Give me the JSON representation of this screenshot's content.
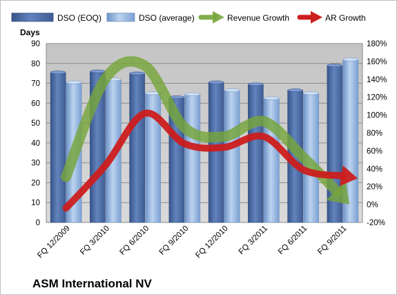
{
  "chart_data": {
    "type": "bar",
    "title": "ASM International NV",
    "ylabel": "Days",
    "categories": [
      "FQ 12/2009",
      "FQ 3/2010",
      "FQ 6/2010",
      "FQ 9/2010",
      "FQ 12/2010",
      "FQ 3/2011",
      "FQ 6/2011",
      "FQ 9/2011"
    ],
    "ylim": [
      0,
      90
    ],
    "yticks": [
      0,
      10,
      20,
      30,
      40,
      50,
      60,
      70,
      80,
      90
    ],
    "y2lim": [
      -20,
      180
    ],
    "y2ticks": [
      "-20%",
      "0%",
      "20%",
      "40%",
      "60%",
      "80%",
      "100%",
      "120%",
      "140%",
      "160%",
      "180%"
    ],
    "legend_position": "top",
    "grid": true,
    "series": [
      {
        "name": "DSO (EOQ)",
        "axis": "left",
        "kind": "bar",
        "color": "#4f6ea5",
        "values": [
          75.5,
          76,
          75,
          63,
          70.5,
          69.5,
          66.5,
          79
        ]
      },
      {
        "name": "DSO (average)",
        "axis": "left",
        "kind": "bar",
        "color": "#8fb1dc",
        "values": [
          70.5,
          72,
          65,
          64.5,
          66.5,
          62.5,
          65,
          82
        ]
      },
      {
        "name": "Revenue Growth",
        "axis": "right",
        "kind": "line",
        "color": "#76a53b",
        "values": [
          31,
          141,
          155,
          86,
          76,
          93,
          53,
          8
        ]
      },
      {
        "name": "AR Growth",
        "axis": "right",
        "kind": "line",
        "color": "#cc1e1e",
        "values": [
          -4,
          44,
          102,
          68,
          64,
          76,
          39,
          32
        ]
      }
    ]
  }
}
